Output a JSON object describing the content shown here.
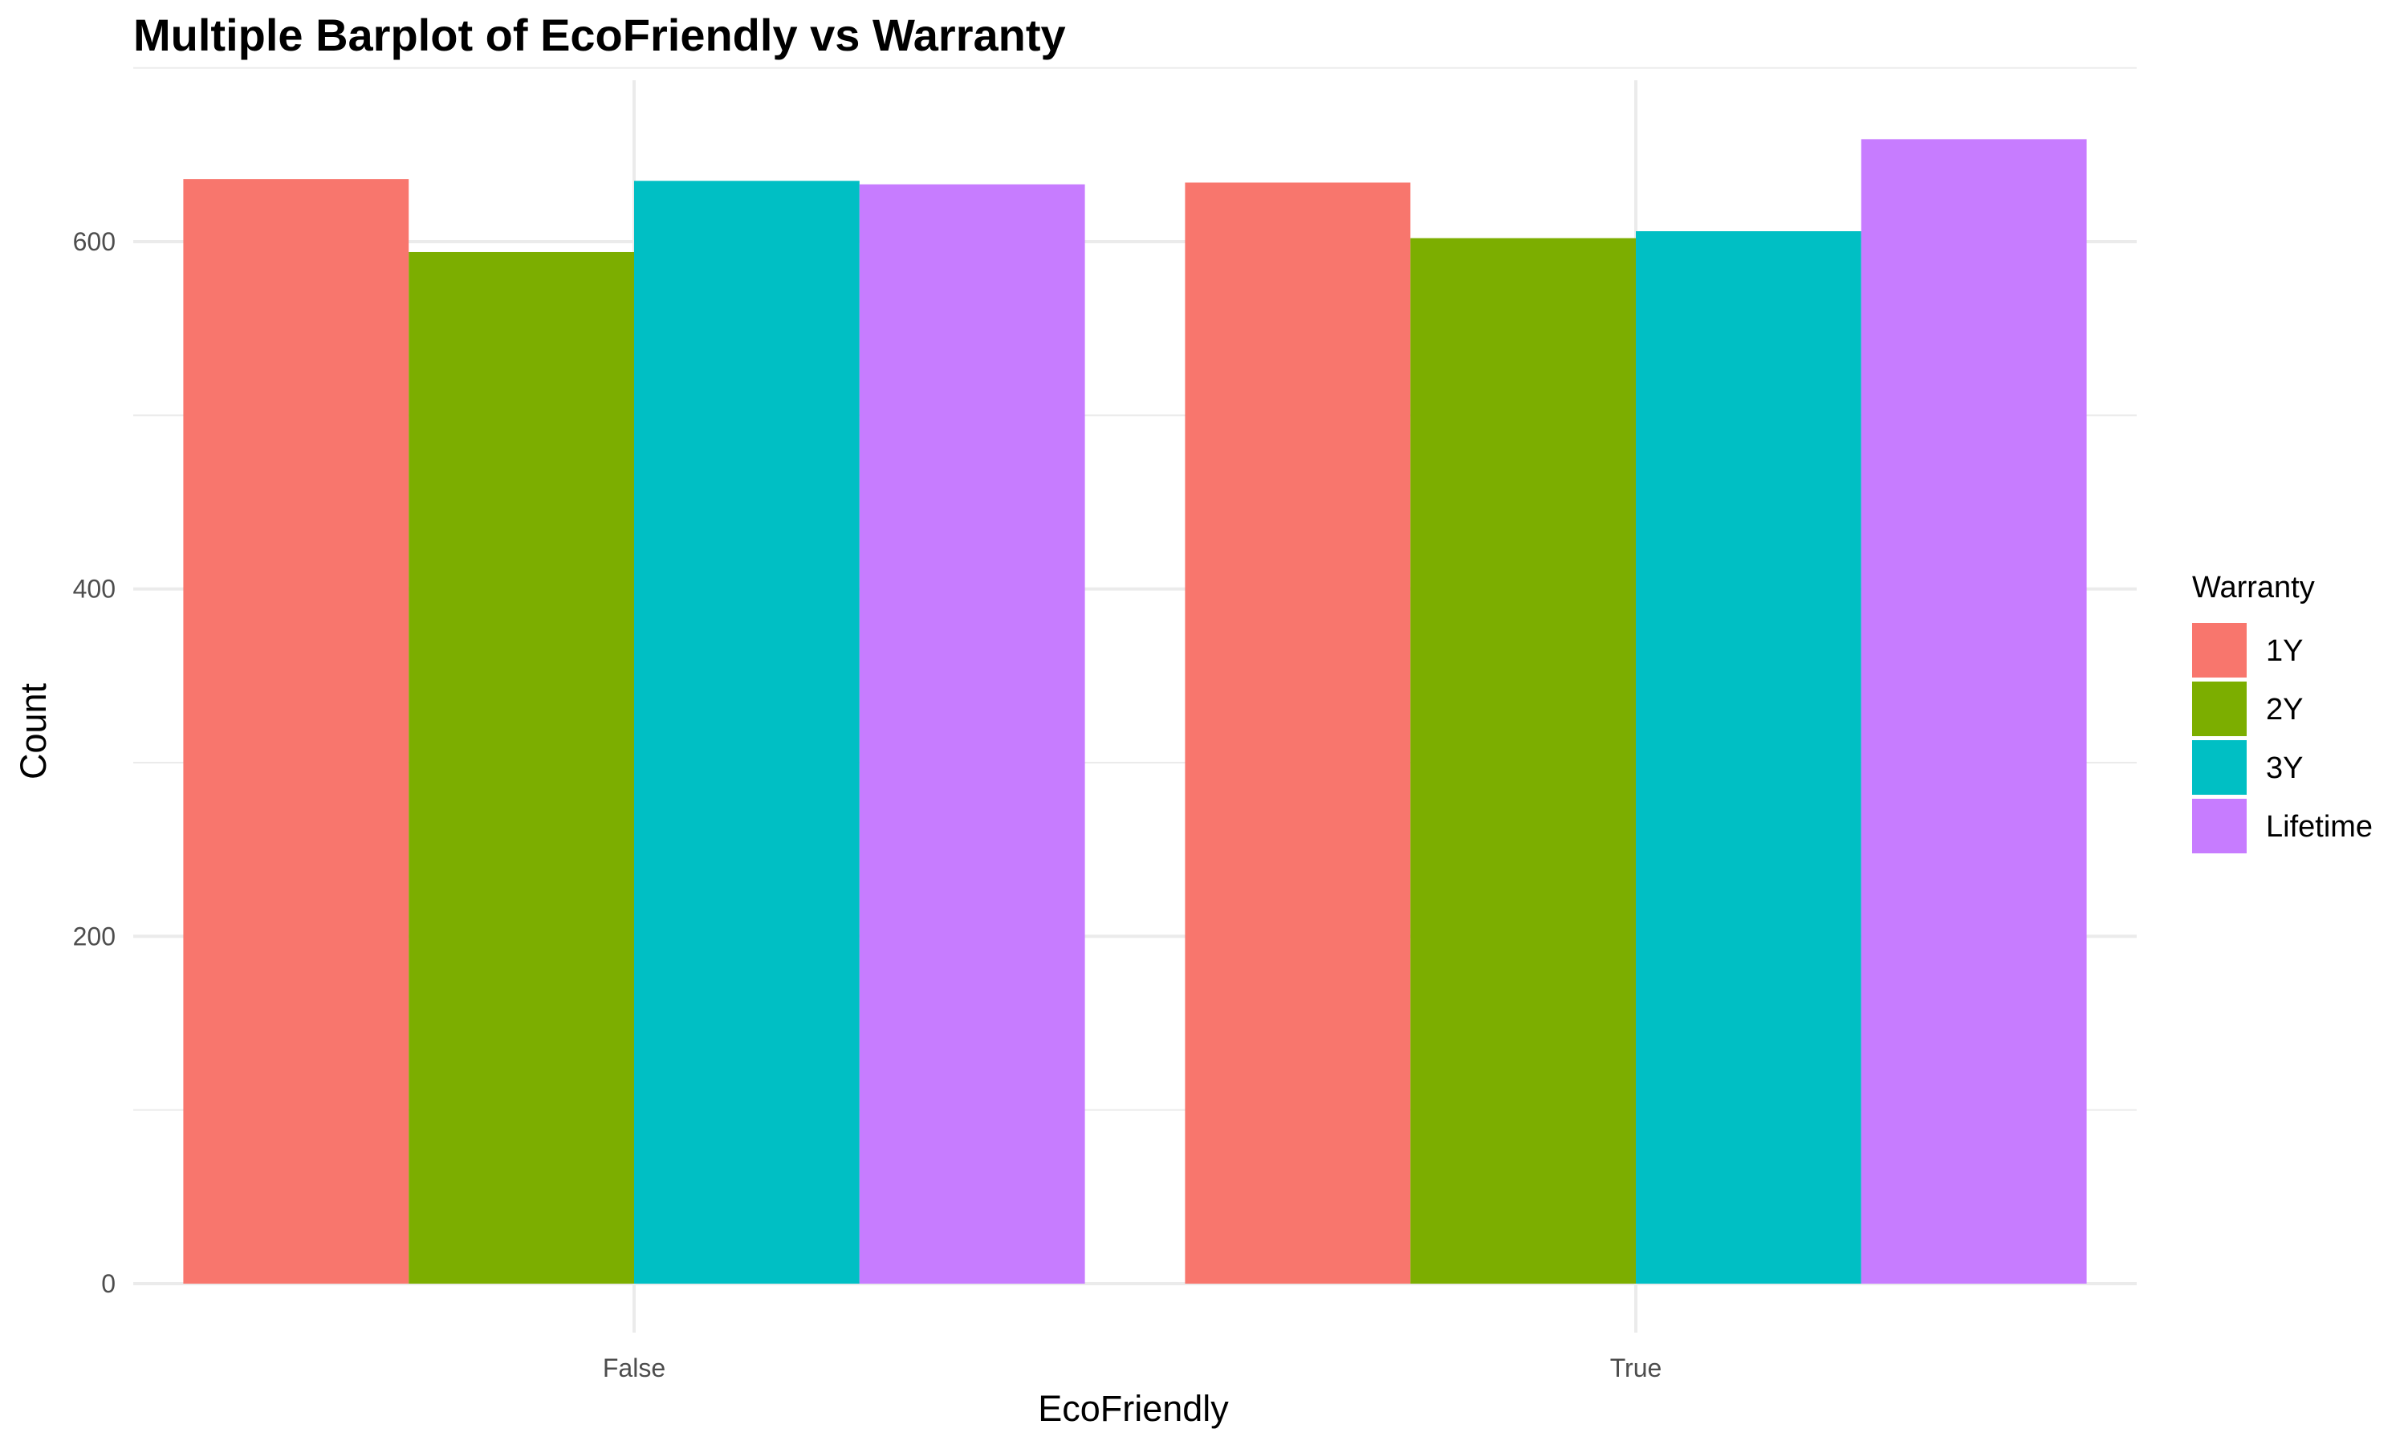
{
  "chart_data": {
    "type": "bar",
    "title": "Multiple Barplot of EcoFriendly vs Warranty",
    "xlabel": "EcoFriendly",
    "ylabel": "Count",
    "categories": [
      "False",
      "True"
    ],
    "ylim": [
      0,
      700
    ],
    "yticks": [
      0,
      200,
      400,
      600
    ],
    "grid": true,
    "legend": {
      "title": "Warranty",
      "placement": "right"
    },
    "series": [
      {
        "name": "1Y",
        "color": "#F8766D",
        "values": [
          636,
          634
        ]
      },
      {
        "name": "2Y",
        "color": "#7CAE00",
        "values": [
          594,
          602
        ]
      },
      {
        "name": "3Y",
        "color": "#00BFC4",
        "values": [
          635,
          606
        ]
      },
      {
        "name": "Lifetime",
        "color": "#C77CFF",
        "values": [
          633,
          659
        ]
      }
    ]
  }
}
